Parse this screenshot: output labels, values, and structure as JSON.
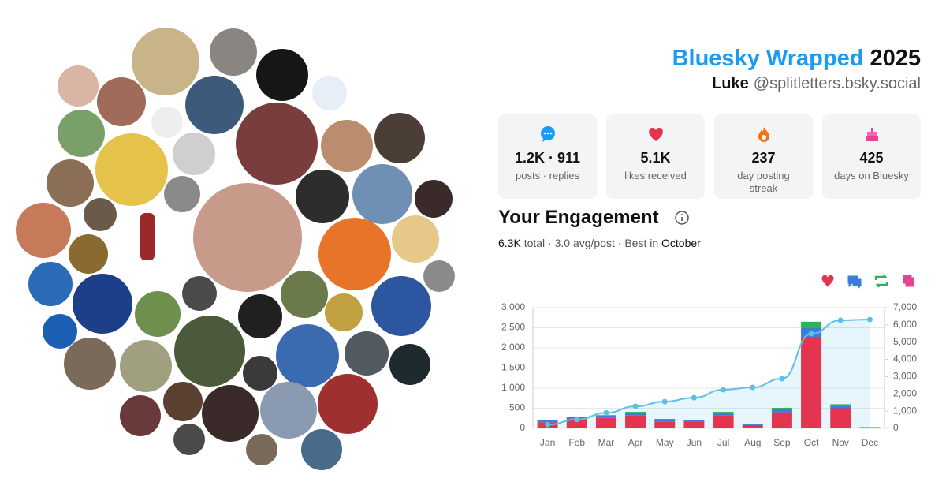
{
  "header": {
    "brand": "Bluesky Wrapped",
    "year": "2025",
    "name": "Luke",
    "handle": "@splitletters.bsky.social"
  },
  "stats": [
    {
      "value": "1.2K · 911",
      "label": "posts · replies"
    },
    {
      "value": "5.1K",
      "label": "likes received"
    },
    {
      "value": "237",
      "label": "day posting streak"
    },
    {
      "value": "425",
      "label": "days on Bluesky"
    }
  ],
  "engagement": {
    "title": "Your Engagement",
    "total": "6.3K",
    "summary": "total · 3.0 avg/post · Best in",
    "best_month": "October"
  },
  "chart_data": {
    "type": "bar",
    "stacked": true,
    "categories": [
      "Jan",
      "Feb",
      "Mar",
      "Apr",
      "May",
      "Jun",
      "Jul",
      "Aug",
      "Sep",
      "Oct",
      "Nov",
      "Dec"
    ],
    "series": [
      {
        "color": "#e5344f",
        "values": [
          150,
          240,
          260,
          320,
          170,
          165,
          330,
          80,
          400,
          2275,
          500,
          30
        ]
      },
      {
        "color": "#3b7dd8",
        "values": [
          55,
          55,
          55,
          65,
          55,
          40,
          60,
          20,
          70,
          215,
          60,
          0
        ]
      },
      {
        "color": "#2fb35a",
        "values": [
          10,
          0,
          15,
          25,
          10,
          10,
          20,
          0,
          40,
          160,
          40,
          0
        ]
      },
      {
        "color": "#e84393",
        "values": [
          0,
          0,
          0,
          0,
          0,
          0,
          0,
          0,
          0,
          0,
          0,
          0
        ]
      },
      {
        "type": "line",
        "axis": "y2",
        "color": "#5bc0e8",
        "values": [
          215,
          510,
          900,
          1280,
          1550,
          1780,
          2240,
          2380,
          2880,
          5490,
          6270,
          6310
        ]
      }
    ],
    "ylim": [
      0,
      3000
    ],
    "yticks": [
      0,
      500,
      {
        "value": 1000,
        "label": "1,000"
      },
      {
        "value": 1500,
        "label": "1,500"
      },
      {
        "value": 2000,
        "label": "2,000"
      },
      {
        "value": 2500,
        "label": "2,500"
      },
      {
        "value": 3000,
        "label": "3,000"
      }
    ],
    "y2lim": [
      0,
      7000
    ],
    "y2ticks": [
      0,
      {
        "value": 1000,
        "label": "1,000"
      },
      {
        "value": 2000,
        "label": "2,000"
      },
      {
        "value": 3000,
        "label": "3,000"
      },
      {
        "value": 4000,
        "label": "4,000"
      },
      {
        "value": 5000,
        "label": "5,000"
      },
      {
        "value": 6000,
        "label": "6,000"
      },
      {
        "value": 7000,
        "label": "7,000"
      }
    ],
    "grid": true
  }
}
